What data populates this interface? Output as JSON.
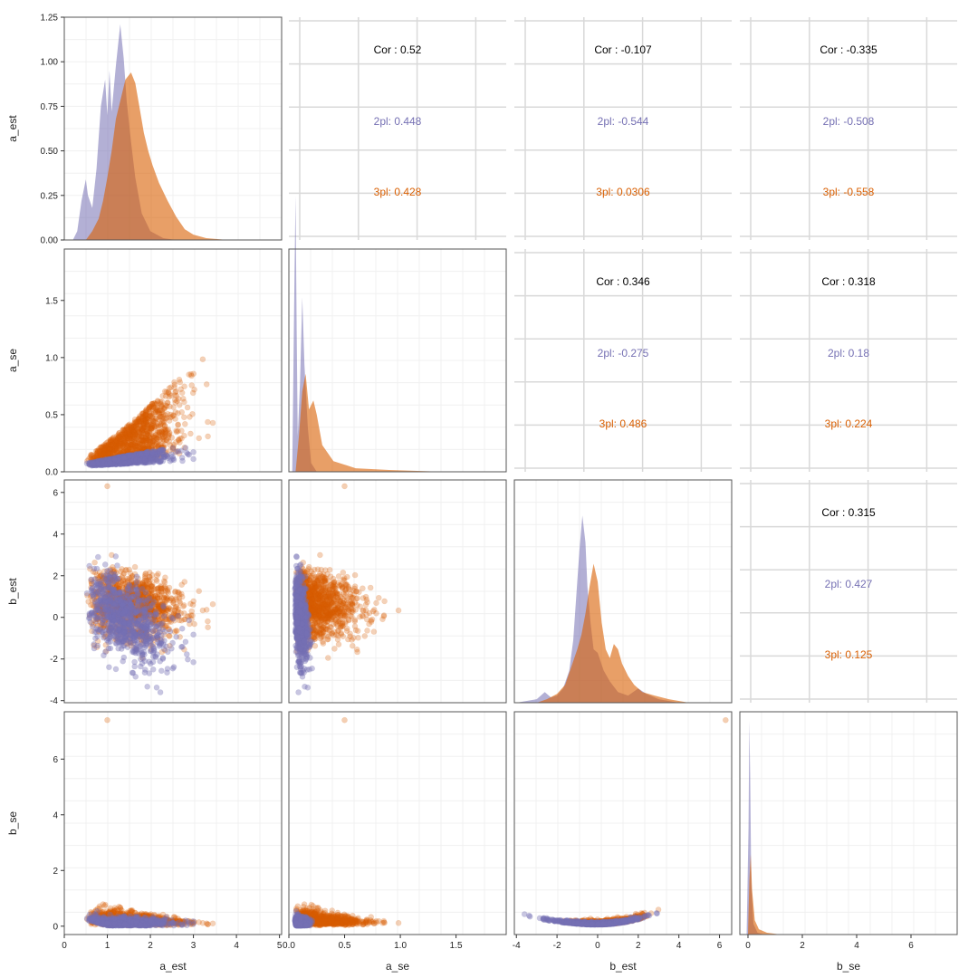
{
  "chart_data": {
    "type": "scatter-matrix",
    "variables": [
      "a_est",
      "a_se",
      "b_est",
      "b_se"
    ],
    "colors": {
      "2pl": "#7570b3",
      "3pl": "#d95f02"
    },
    "groups": [
      "2pl",
      "3pl"
    ],
    "ranges": {
      "a_est": [
        0,
        5.05
      ],
      "a_se": [
        0,
        1.95
      ],
      "b_est": [
        -4.1,
        6.6
      ],
      "b_se": [
        -0.3,
        7.7
      ]
    },
    "ticks": {
      "a_est": [
        0,
        1,
        2,
        3,
        4,
        5
      ],
      "a_se": [
        0.0,
        0.5,
        1.0,
        1.5
      ],
      "b_est": [
        -4,
        -2,
        0,
        2,
        4,
        6
      ],
      "b_se": [
        0,
        2,
        4,
        6
      ]
    },
    "tick_labels": {
      "a_est": [
        "0",
        "1",
        "2",
        "3",
        "4",
        "5"
      ],
      "a_se": [
        "0.0",
        "0.5",
        "1.0",
        "1.5"
      ],
      "b_est": [
        "-4",
        "-2",
        "0",
        "2",
        "4",
        "6"
      ],
      "b_se": [
        "0",
        "2",
        "4",
        "6"
      ]
    },
    "density_ylim": [
      0,
      1.25
    ],
    "density_ticks": [
      0,
      0.25,
      0.5,
      0.75,
      1.0,
      1.25
    ],
    "density_tick_labels": [
      "0.00",
      "0.25",
      "0.50",
      "0.75",
      "1.00",
      "1.25"
    ],
    "correlations": [
      {
        "row": 0,
        "col": 1,
        "overall": "Cor : 0.52",
        "g2pl": "2pl: 0.448",
        "g3pl": "3pl: 0.428"
      },
      {
        "row": 0,
        "col": 2,
        "overall": "Cor : -0.107",
        "g2pl": "2pl: -0.544",
        "g3pl": "3pl: 0.0306"
      },
      {
        "row": 0,
        "col": 3,
        "overall": "Cor : -0.335",
        "g2pl": "2pl: -0.508",
        "g3pl": "3pl: -0.558"
      },
      {
        "row": 1,
        "col": 2,
        "overall": "Cor : 0.346",
        "g2pl": "2pl: -0.275",
        "g3pl": "3pl: 0.486"
      },
      {
        "row": 1,
        "col": 3,
        "overall": "Cor : 0.318",
        "g2pl": "2pl: 0.18",
        "g3pl": "3pl: 0.224"
      },
      {
        "row": 2,
        "col": 3,
        "overall": "Cor : 0.315",
        "g2pl": "2pl: 0.427",
        "g3pl": "3pl: 0.125"
      }
    ],
    "densities": {
      "a_est": {
        "2pl": [
          [
            0.2,
            0
          ],
          [
            0.3,
            0.05
          ],
          [
            0.4,
            0.22
          ],
          [
            0.5,
            0.34
          ],
          [
            0.55,
            0.25
          ],
          [
            0.65,
            0.18
          ],
          [
            0.75,
            0.4
          ],
          [
            0.85,
            0.75
          ],
          [
            0.95,
            0.9
          ],
          [
            1.0,
            0.7
          ],
          [
            1.05,
            0.95
          ],
          [
            1.1,
            0.72
          ],
          [
            1.2,
            0.98
          ],
          [
            1.3,
            1.21
          ],
          [
            1.38,
            1.02
          ],
          [
            1.45,
            0.78
          ],
          [
            1.55,
            0.55
          ],
          [
            1.65,
            0.35
          ],
          [
            1.8,
            0.15
          ],
          [
            2.0,
            0.05
          ],
          [
            2.3,
            0.01
          ],
          [
            2.6,
            0
          ]
        ],
        "3pl": [
          [
            0.5,
            0
          ],
          [
            0.65,
            0.05
          ],
          [
            0.8,
            0.12
          ],
          [
            0.9,
            0.22
          ],
          [
            1.0,
            0.35
          ],
          [
            1.1,
            0.5
          ],
          [
            1.2,
            0.68
          ],
          [
            1.3,
            0.78
          ],
          [
            1.42,
            0.9
          ],
          [
            1.55,
            0.94
          ],
          [
            1.65,
            0.88
          ],
          [
            1.75,
            0.74
          ],
          [
            1.85,
            0.6
          ],
          [
            1.95,
            0.5
          ],
          [
            2.05,
            0.42
          ],
          [
            2.2,
            0.32
          ],
          [
            2.4,
            0.22
          ],
          [
            2.6,
            0.13
          ],
          [
            2.8,
            0.06
          ],
          [
            3.0,
            0.03
          ],
          [
            3.3,
            0.01
          ],
          [
            3.8,
            0
          ]
        ]
      },
      "a_se": {
        "2pl": [
          [
            0.03,
            0
          ],
          [
            0.05,
            1.1
          ],
          [
            0.06,
            1.55
          ],
          [
            0.07,
            0.8
          ],
          [
            0.08,
            0.2
          ],
          [
            0.1,
            0.5
          ],
          [
            0.12,
            0.98
          ],
          [
            0.14,
            0.6
          ],
          [
            0.17,
            0.25
          ],
          [
            0.2,
            0.05
          ],
          [
            0.25,
            0
          ]
        ],
        "3pl": [
          [
            0.06,
            0
          ],
          [
            0.09,
            0.2
          ],
          [
            0.12,
            0.45
          ],
          [
            0.15,
            0.55
          ],
          [
            0.18,
            0.35
          ],
          [
            0.22,
            0.4
          ],
          [
            0.25,
            0.32
          ],
          [
            0.3,
            0.15
          ],
          [
            0.4,
            0.06
          ],
          [
            0.6,
            0.02
          ],
          [
            0.9,
            0.01
          ],
          [
            1.4,
            0
          ]
        ]
      },
      "b_est": {
        "2pl": [
          [
            -4,
            0
          ],
          [
            -3.0,
            0.02
          ],
          [
            -2.6,
            0.06
          ],
          [
            -2.3,
            0.03
          ],
          [
            -2.0,
            0.04
          ],
          [
            -1.7,
            0.08
          ],
          [
            -1.4,
            0.18
          ],
          [
            -1.2,
            0.35
          ],
          [
            -1.05,
            0.6
          ],
          [
            -0.9,
            0.85
          ],
          [
            -0.75,
            1.05
          ],
          [
            -0.6,
            0.9
          ],
          [
            -0.5,
            0.65
          ],
          [
            -0.35,
            0.45
          ],
          [
            -0.2,
            0.3
          ],
          [
            0.0,
            0.28
          ],
          [
            0.3,
            0.18
          ],
          [
            0.6,
            0.12
          ],
          [
            1.0,
            0.06
          ],
          [
            1.5,
            0.04
          ],
          [
            2.0,
            0.08
          ],
          [
            2.4,
            0.05
          ],
          [
            3.0,
            0.02
          ],
          [
            4.0,
            0
          ]
        ],
        "3pl": [
          [
            -3,
            0
          ],
          [
            -2.5,
            0.02
          ],
          [
            -2.0,
            0.05
          ],
          [
            -1.6,
            0.1
          ],
          [
            -1.3,
            0.2
          ],
          [
            -1.0,
            0.3
          ],
          [
            -0.8,
            0.38
          ],
          [
            -0.6,
            0.5
          ],
          [
            -0.4,
            0.65
          ],
          [
            -0.2,
            0.78
          ],
          [
            0.0,
            0.68
          ],
          [
            0.2,
            0.45
          ],
          [
            0.4,
            0.3
          ],
          [
            0.6,
            0.25
          ],
          [
            0.8,
            0.33
          ],
          [
            1.0,
            0.3
          ],
          [
            1.2,
            0.22
          ],
          [
            1.5,
            0.15
          ],
          [
            1.8,
            0.1
          ],
          [
            2.2,
            0.06
          ],
          [
            2.8,
            0.04
          ],
          [
            3.5,
            0.02
          ],
          [
            4.5,
            0
          ]
        ]
      },
      "b_se": {
        "2pl": [
          [
            -0.05,
            0
          ],
          [
            0.02,
            0.6
          ],
          [
            0.05,
            1.2
          ],
          [
            0.08,
            0.9
          ],
          [
            0.12,
            0.3
          ],
          [
            0.2,
            0.06
          ],
          [
            0.35,
            0.01
          ],
          [
            0.6,
            0
          ]
        ],
        "3pl": [
          [
            0.0,
            0
          ],
          [
            0.05,
            0.3
          ],
          [
            0.1,
            0.45
          ],
          [
            0.15,
            0.25
          ],
          [
            0.25,
            0.08
          ],
          [
            0.4,
            0.03
          ],
          [
            0.7,
            0.01
          ],
          [
            1.2,
            0
          ]
        ]
      }
    }
  }
}
